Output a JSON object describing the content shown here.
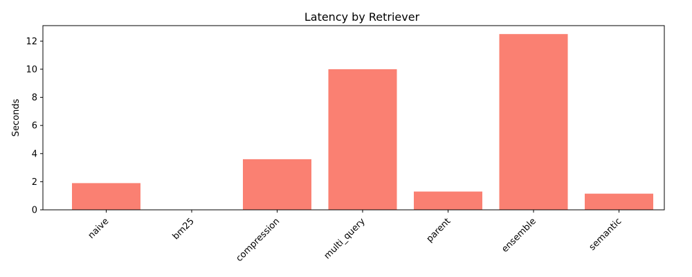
{
  "chart_data": {
    "type": "bar",
    "title": "Latency by Retriever",
    "xlabel": "",
    "ylabel": "Seconds",
    "categories": [
      "naive",
      "bm25",
      "compression",
      "multi_query",
      "parent",
      "ensemble",
      "semantic"
    ],
    "values": [
      1.9,
      0.0,
      3.6,
      10.0,
      1.3,
      12.5,
      1.15
    ],
    "ylim": [
      0,
      13.1
    ],
    "yticks": [
      0,
      2,
      4,
      6,
      8,
      10,
      12
    ],
    "grid": false,
    "legend": "none",
    "bar_color": "#FA8072"
  }
}
